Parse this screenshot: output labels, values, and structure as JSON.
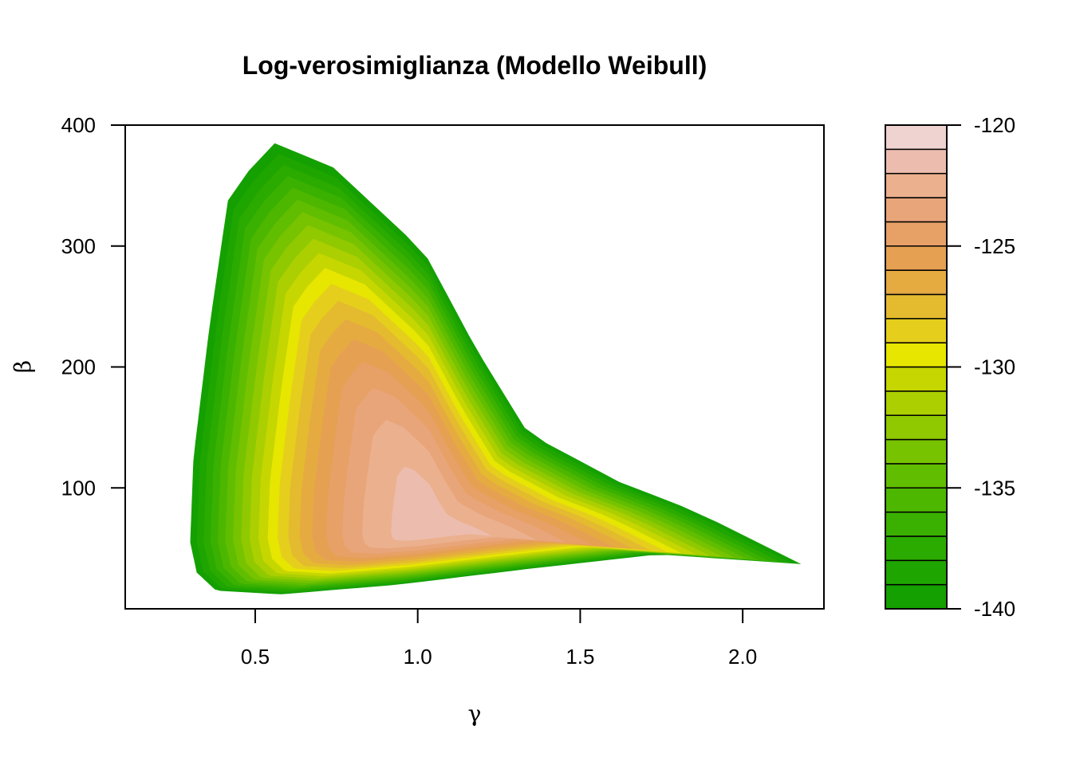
{
  "chart_data": {
    "type": "heatmap",
    "subtype": "filled-contour",
    "title": "Log-verosimiglianza (Modello Weibull)",
    "xlabel": "γ",
    "ylabel": "β",
    "xlim": [
      0.1,
      2.25
    ],
    "ylim": [
      0,
      400
    ],
    "x_ticks": [
      0.5,
      1.0,
      1.5,
      2.0
    ],
    "x_tick_labels": [
      "0.5",
      "1.0",
      "1.5",
      "2.0"
    ],
    "y_ticks": [
      100,
      200,
      300,
      400
    ],
    "y_tick_labels": [
      "100",
      "200",
      "300",
      "400"
    ],
    "z_range": [
      -140,
      -120
    ],
    "legend_position": "right",
    "legend_ticks": [
      -140,
      -135,
      -130,
      -125,
      -120
    ],
    "legend_tick_labels": [
      "-140",
      "-135",
      "-130",
      "-125",
      "-120"
    ],
    "levels": [
      -140,
      -139,
      -138,
      -137,
      -136,
      -135,
      -134,
      -133,
      -132,
      -131,
      -130,
      -129,
      -128,
      -127,
      -126,
      -125,
      -124,
      -123,
      -122,
      -121,
      -120
    ],
    "level_colors": [
      "#14A000",
      "#1FA500",
      "#2BAB00",
      "#3AB100",
      "#4DB700",
      "#61BD00",
      "#77C300",
      "#90C900",
      "#ABCF00",
      "#C6D600",
      "#E6E600",
      "#E5CF1C",
      "#E4BB2F",
      "#E5AB41",
      "#E6A052",
      "#E7A066",
      "#E9A57A",
      "#EBB08E",
      "#ECBDAE",
      "#EFD3D0",
      "#F2F2F2"
    ],
    "maximum_approx": {
      "gamma": 1.04,
      "beta": 65,
      "loglik": -121.5
    },
    "visible_region_boundary_level": -140
  }
}
